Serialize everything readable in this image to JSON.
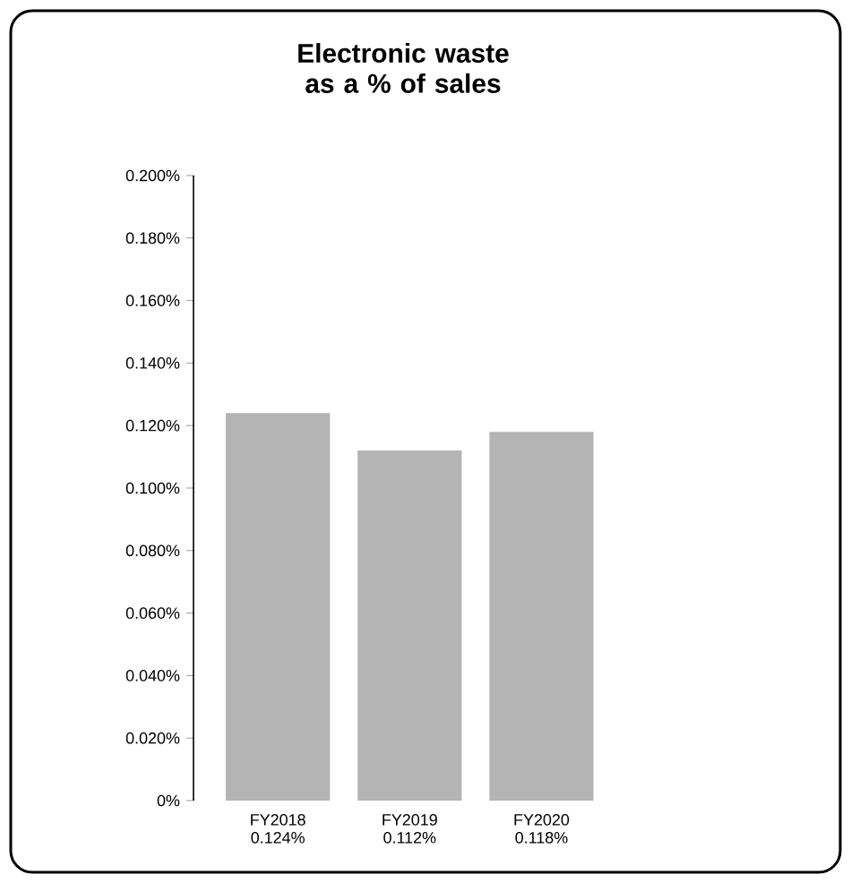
{
  "chart_data": {
    "type": "bar",
    "title": "Electronic waste as a % of sales",
    "categories": [
      "FY2018",
      "FY2019",
      "FY2020"
    ],
    "values": [
      0.124,
      0.112,
      0.118
    ],
    "value_labels": [
      "0.124%",
      "0.112%",
      "0.118%"
    ],
    "color": "#b4b4b4",
    "ylim": [
      0,
      0.2
    ],
    "yticks": [
      {
        "value": 0,
        "label": "0%"
      },
      {
        "value": 0.02,
        "label": "0.020%"
      },
      {
        "value": 0.04,
        "label": "0.040%"
      },
      {
        "value": 0.06,
        "label": "0.060%"
      },
      {
        "value": 0.08,
        "label": "0.080%"
      },
      {
        "value": 0.1,
        "label": "0.100%"
      },
      {
        "value": 0.12,
        "label": "0.120%"
      },
      {
        "value": 0.14,
        "label": "0.140%"
      },
      {
        "value": 0.16,
        "label": "0.160%"
      },
      {
        "value": 0.18,
        "label": "0.180%"
      },
      {
        "value": 0.2,
        "label": "0.200%"
      }
    ]
  }
}
